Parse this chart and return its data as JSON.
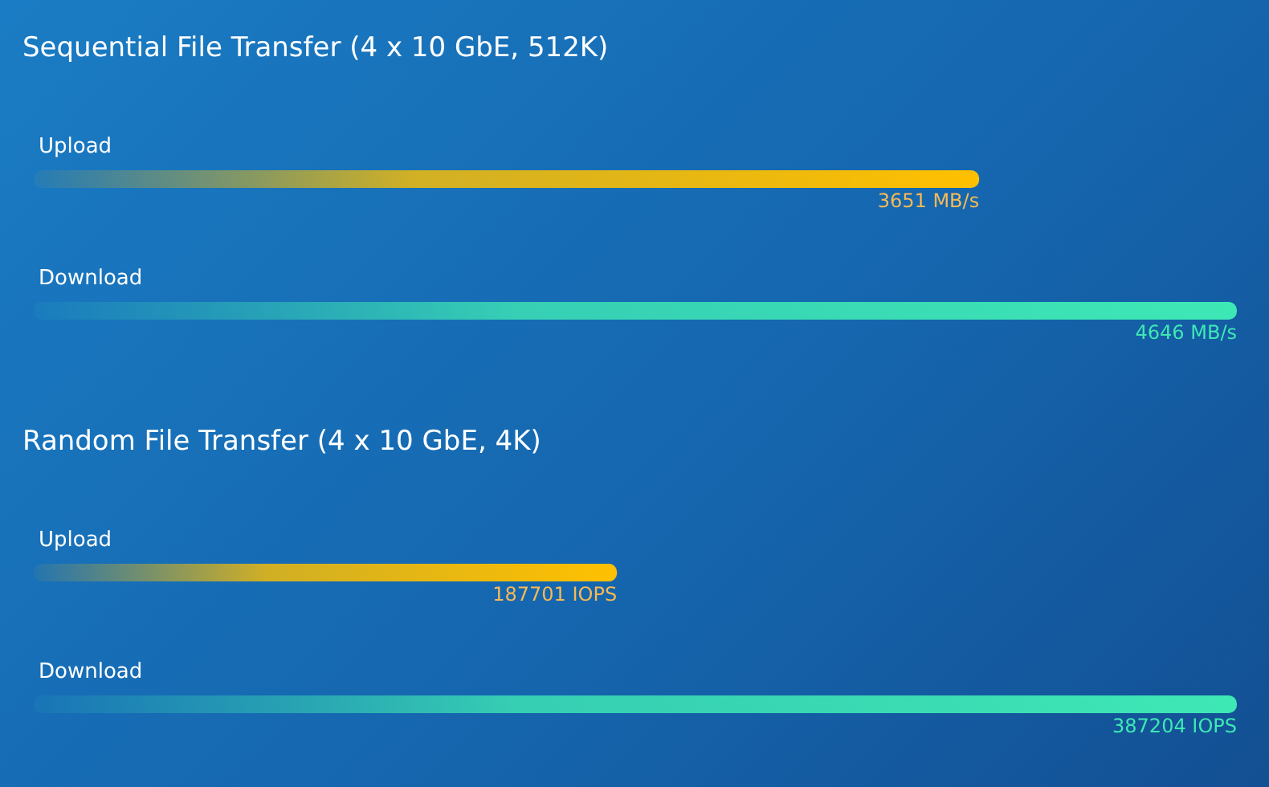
{
  "chart_data": [
    {
      "type": "bar",
      "orientation": "horizontal",
      "title": "Sequential File Transfer (4 x 10 GbE, 512K)",
      "categories": [
        "Upload",
        "Download"
      ],
      "values": [
        3651,
        4646
      ],
      "colors": [
        "#ffc000",
        "#3ee8b5"
      ],
      "value_labels": [
        "3651 MB/s",
        "4646 MB/s"
      ],
      "tick_labels": "y"
    },
    {
      "type": "bar",
      "orientation": "horizontal",
      "title": "Random File Transfer (4 x 10 GbE, 4K)",
      "categories": [
        "Upload",
        "Download"
      ],
      "values": [
        187701,
        387204
      ],
      "colors": [
        "#ffc000",
        "#3ee8b5"
      ],
      "value_labels": [
        "187701 IOPS",
        "387204 IOPS"
      ],
      "tick_labels": "y"
    }
  ]
}
